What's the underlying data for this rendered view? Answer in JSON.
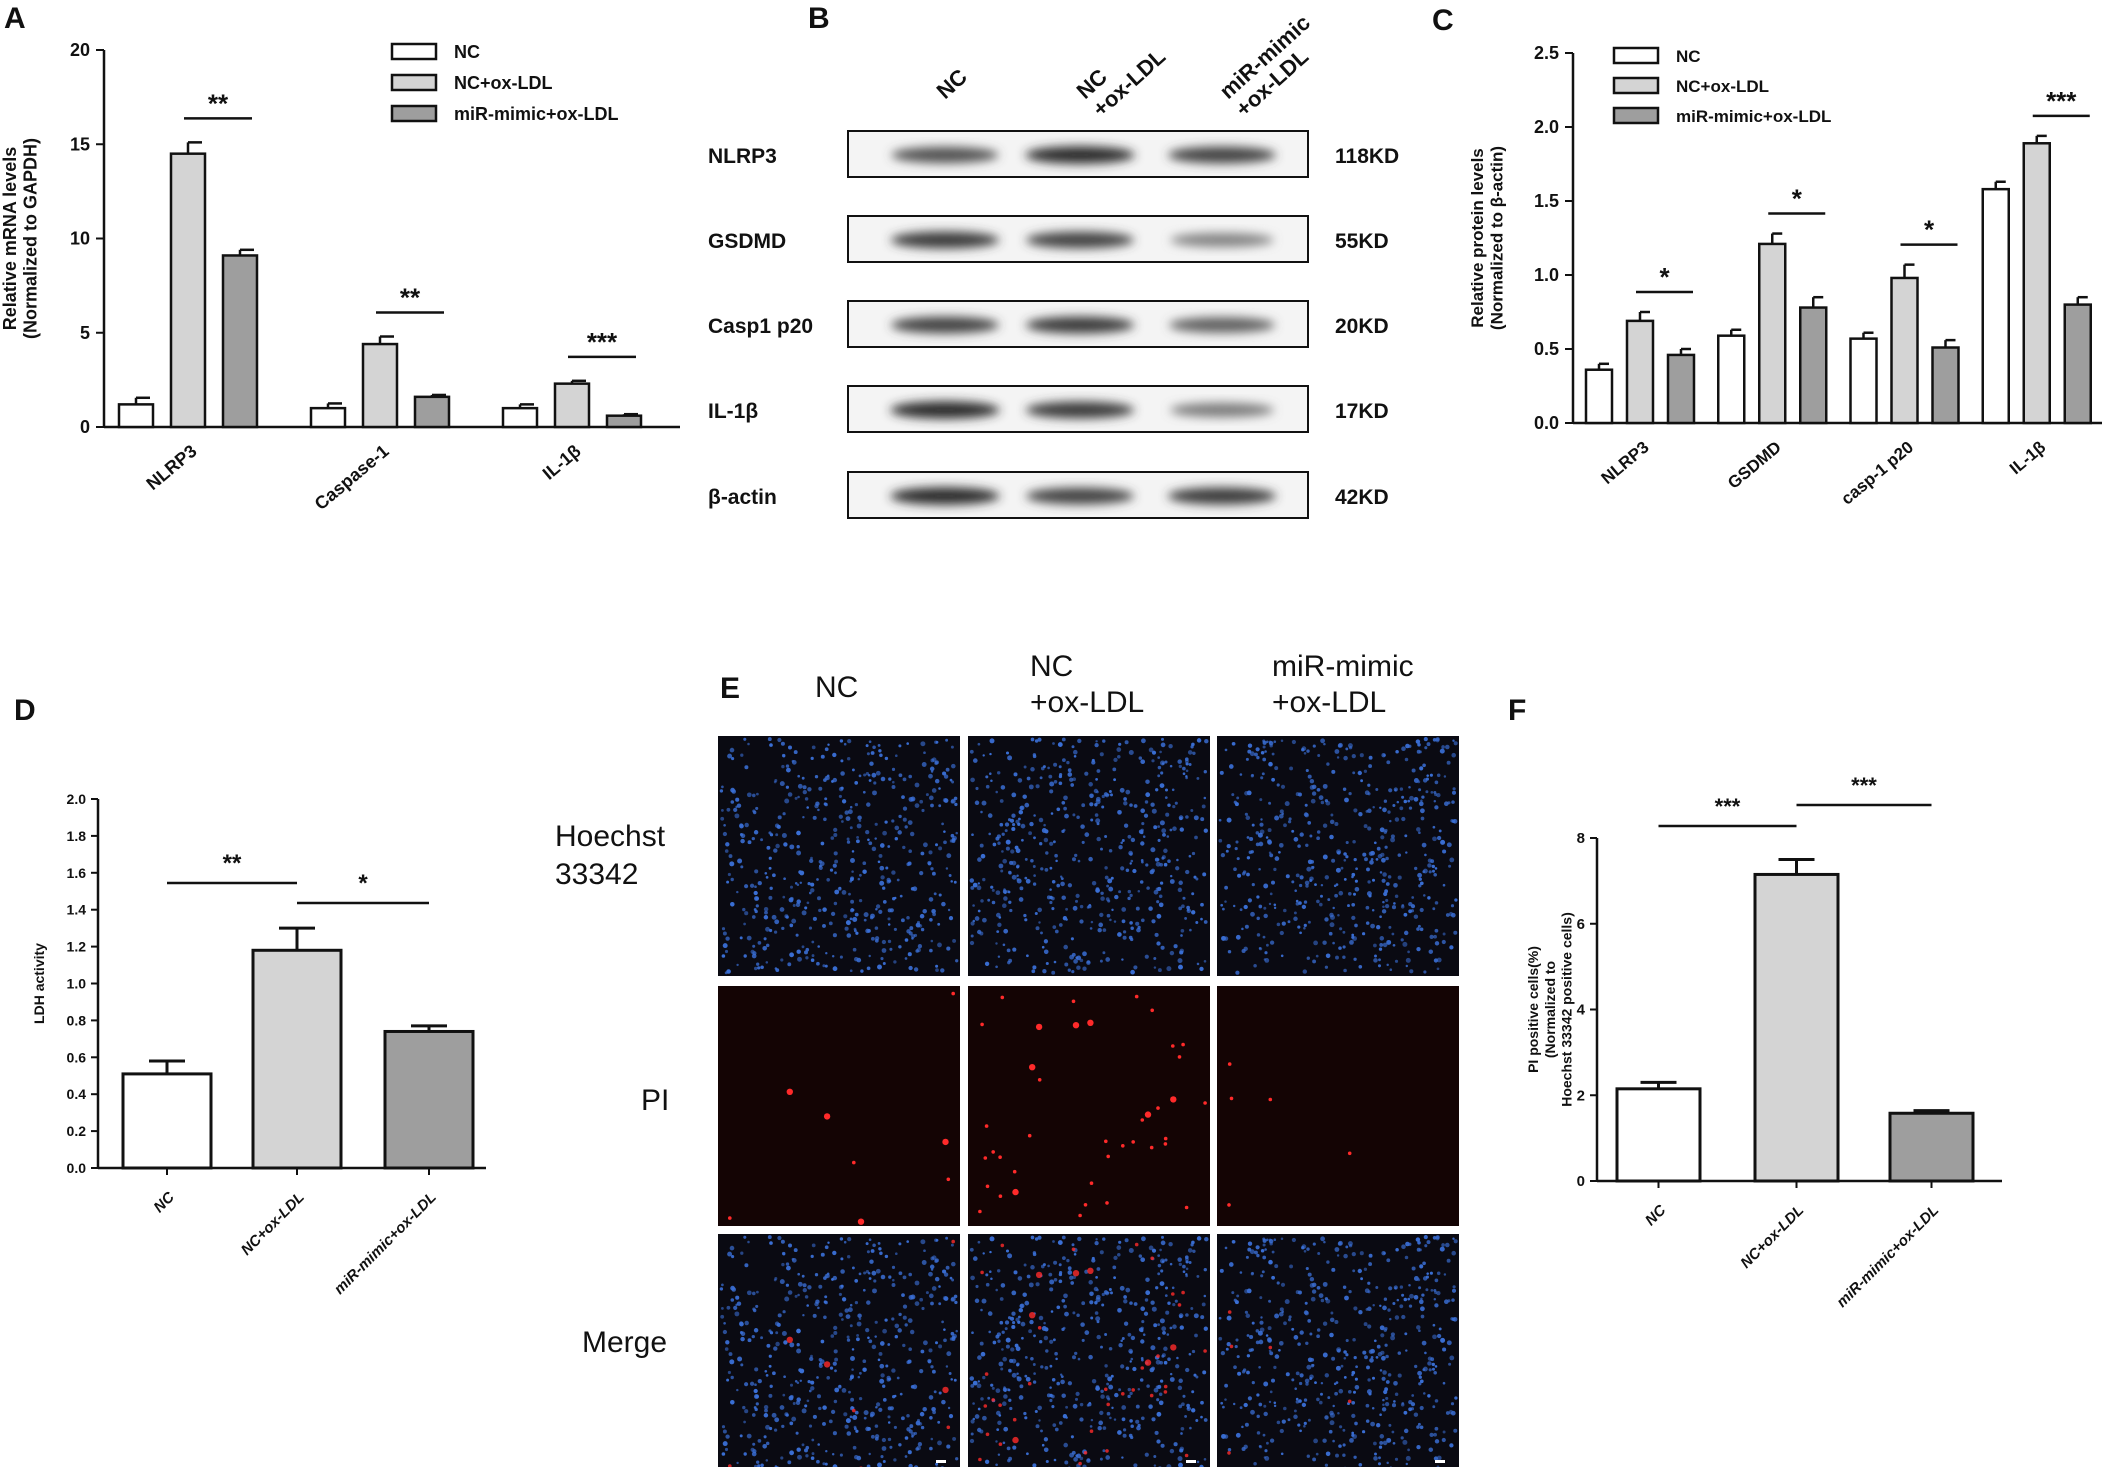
{
  "colors": {
    "nc": "#ffffff",
    "ncox": "#d4d4d4",
    "mimic": "#9e9e9e",
    "nuclei": "#3a6fd6",
    "pi": "#ff2a2a",
    "micro_bg": "#0a0a12"
  },
  "panelA": {
    "letter": "A",
    "chart_data": {
      "type": "bar",
      "ylabel": "Relative mRNA levels\n(Normalized to GAPDH)",
      "ylim": [
        0,
        20
      ],
      "yticks": [
        "0",
        "5",
        "10",
        "15",
        "20"
      ],
      "categories": [
        "NLRP3",
        "Caspase-1",
        "IL-1β"
      ],
      "series": [
        {
          "name": "NC",
          "values": [
            1.2,
            1.0,
            1.0
          ],
          "errors": [
            0.35,
            0.25,
            0.2
          ]
        },
        {
          "name": "NC+ox-LDL",
          "values": [
            14.5,
            4.4,
            2.3
          ],
          "errors": [
            0.6,
            0.4,
            0.15
          ]
        },
        {
          "name": "miR-mimic+ox-LDL",
          "values": [
            9.1,
            1.6,
            0.6
          ],
          "errors": [
            0.3,
            0.1,
            0.08
          ]
        }
      ],
      "significance": [
        "**",
        "**",
        "***"
      ],
      "legend": "top-right"
    }
  },
  "panelB": {
    "letter": "B",
    "lanes": [
      "NC",
      "NC\n+ox-LDL",
      "miR-mimic\n+ox-LDL"
    ],
    "blots": [
      {
        "protein": "NLRP3",
        "size": "118KD",
        "intensity": [
          0.7,
          0.95,
          0.8
        ]
      },
      {
        "protein": "GSDMD",
        "size": "55KD",
        "intensity": [
          0.85,
          0.8,
          0.35
        ]
      },
      {
        "protein": "Casp1 p20",
        "size": "20KD",
        "intensity": [
          0.8,
          0.85,
          0.6
        ]
      },
      {
        "protein": "IL-1β",
        "size": "17KD",
        "intensity": [
          0.95,
          0.85,
          0.4
        ]
      },
      {
        "protein": "β-actin",
        "size": "42KD",
        "intensity": [
          0.95,
          0.8,
          0.85
        ]
      }
    ]
  },
  "panelC": {
    "letter": "C",
    "chart_data": {
      "type": "bar",
      "ylabel": "Relative protein levels\n(Normalized to β-actin)",
      "ylim": [
        0,
        2.5
      ],
      "yticks": [
        "0.0",
        "0.5",
        "1.0",
        "1.5",
        "2.0",
        "2.5"
      ],
      "categories": [
        "NLRP3",
        "GSDMD",
        "casp-1 p20",
        "IL-1β"
      ],
      "series": [
        {
          "name": "NC",
          "values": [
            0.36,
            0.59,
            0.57,
            1.58
          ],
          "errors": [
            0.04,
            0.04,
            0.04,
            0.05
          ]
        },
        {
          "name": "NC+ox-LDL",
          "values": [
            0.69,
            1.21,
            0.98,
            1.89
          ],
          "errors": [
            0.06,
            0.07,
            0.09,
            0.05
          ]
        },
        {
          "name": "miR-mimic+ox-LDL",
          "values": [
            0.46,
            0.78,
            0.51,
            0.8
          ],
          "errors": [
            0.04,
            0.07,
            0.05,
            0.05
          ]
        }
      ],
      "significance": [
        "*",
        "*",
        "*",
        "***"
      ],
      "legend": "top-left"
    }
  },
  "panelD": {
    "letter": "D",
    "chart_data": {
      "type": "bar",
      "ylabel": "LDH activity",
      "ylim": [
        0,
        2.0
      ],
      "yticks": [
        "0.0",
        "0.2",
        "0.4",
        "0.6",
        "0.8",
        "1.0",
        "1.2",
        "1.4",
        "1.6",
        "1.8",
        "2.0"
      ],
      "categories": [
        "NC",
        "NC+ox-LDL",
        "miR-mimic+ox-LDL"
      ],
      "values": [
        0.51,
        1.18,
        0.74
      ],
      "errors": [
        0.07,
        0.12,
        0.03
      ],
      "comparisons": [
        {
          "from": 0,
          "to": 1,
          "label": "**"
        },
        {
          "from": 1,
          "to": 2,
          "label": "*"
        }
      ]
    }
  },
  "panelE": {
    "letter": "E",
    "columns": [
      "NC",
      "NC\n+ox-LDL",
      "miR-mimic\n+ox-LDL"
    ],
    "rows": [
      "Hoechst\n33342",
      "PI",
      "Merge"
    ],
    "pi_density": [
      8,
      40,
      5
    ]
  },
  "panelF": {
    "letter": "F",
    "chart_data": {
      "type": "bar",
      "ylabel": "PI positive cells(%)\n(Normalized to\nHoechst 33342 positive cells)",
      "ylim": [
        0,
        8
      ],
      "yticks": [
        "0",
        "2",
        "4",
        "6",
        "8"
      ],
      "categories": [
        "NC",
        "NC+ox-LDL",
        "miR-mimic+ox-LDL"
      ],
      "values": [
        2.15,
        7.15,
        1.58
      ],
      "errors": [
        0.15,
        0.35,
        0.06
      ],
      "comparisons": [
        {
          "from": 0,
          "to": 1,
          "label": "***"
        },
        {
          "from": 1,
          "to": 2,
          "label": "***"
        }
      ]
    }
  }
}
